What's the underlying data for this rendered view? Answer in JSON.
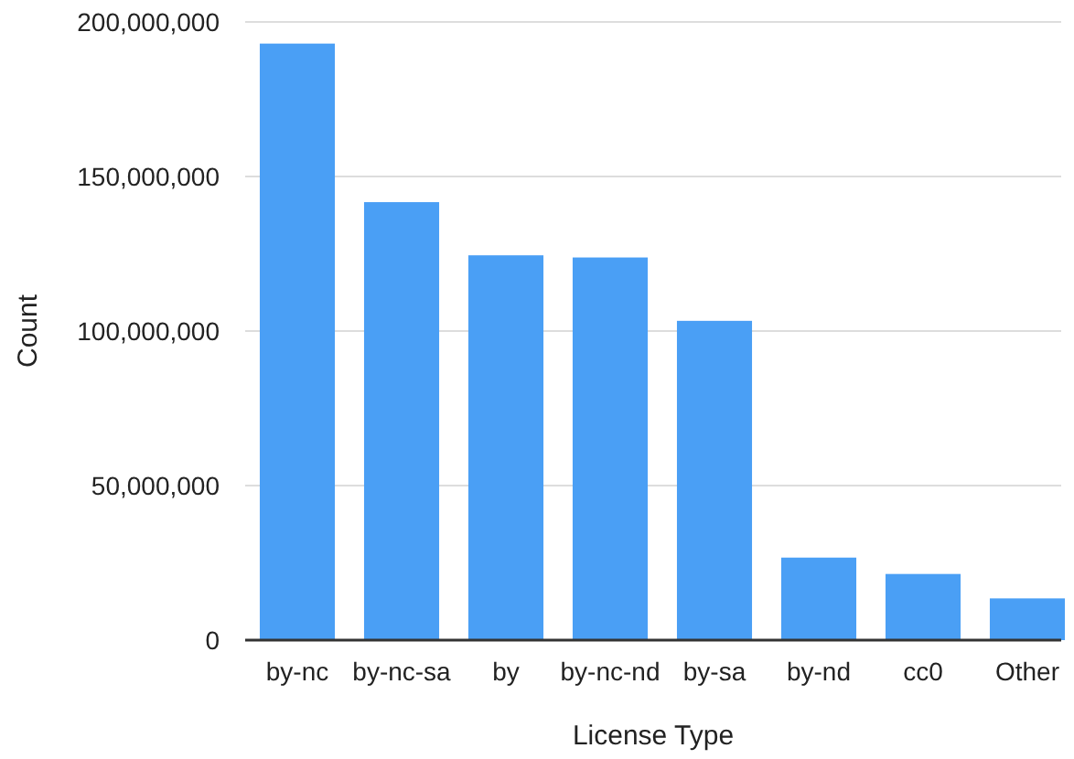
{
  "chart_data": {
    "type": "bar",
    "xlabel": "License Type",
    "ylabel": "Count",
    "categories": [
      "by-nc",
      "by-nc-sa",
      "by",
      "by-nc-nd",
      "by-sa",
      "by-nd",
      "cc0",
      "Other"
    ],
    "values": [
      193000000,
      141700000,
      124500000,
      123800000,
      103300000,
      26700000,
      21400000,
      13500000
    ],
    "color": "#4a9ff5",
    "ylim": [
      0,
      200000000
    ],
    "yticks": [
      {
        "value": 0,
        "label": "0"
      },
      {
        "value": 50000000,
        "label": "50,000,000"
      },
      {
        "value": 100000000,
        "label": "100,000,000"
      },
      {
        "value": 150000000,
        "label": "150,000,000"
      },
      {
        "value": 200000000,
        "label": "200,000,000"
      }
    ],
    "grid": "y"
  }
}
